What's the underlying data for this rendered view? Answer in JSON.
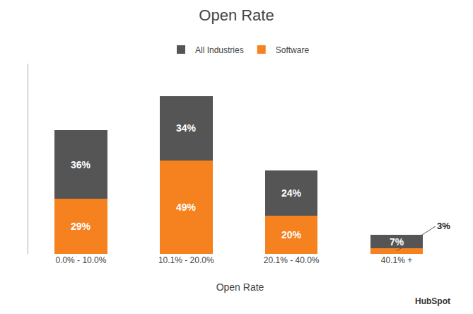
{
  "chart_data": {
    "type": "bar",
    "stacked": true,
    "title": "Open Rate",
    "xlabel": "Open Rate",
    "categories": [
      "0.0% - 10.0%",
      "10.1% - 20.0%",
      "20.1% - 40.0%",
      "40.1% +"
    ],
    "series": [
      {
        "name": "Software",
        "color": "#F5821F",
        "values": [
          29,
          49,
          20,
          3
        ],
        "value_labels": [
          "29%",
          "49%",
          "20%",
          "3%"
        ]
      },
      {
        "name": "All Industries",
        "color": "#555555",
        "values": [
          36,
          34,
          24,
          7
        ],
        "value_labels": [
          "36%",
          "34%",
          "24%",
          "7%"
        ]
      }
    ],
    "ylim": [
      0,
      100
    ],
    "grid": false,
    "legend": "top",
    "data_labels": true,
    "tick_labels": "x",
    "annotations": [
      "HubSpot"
    ]
  }
}
